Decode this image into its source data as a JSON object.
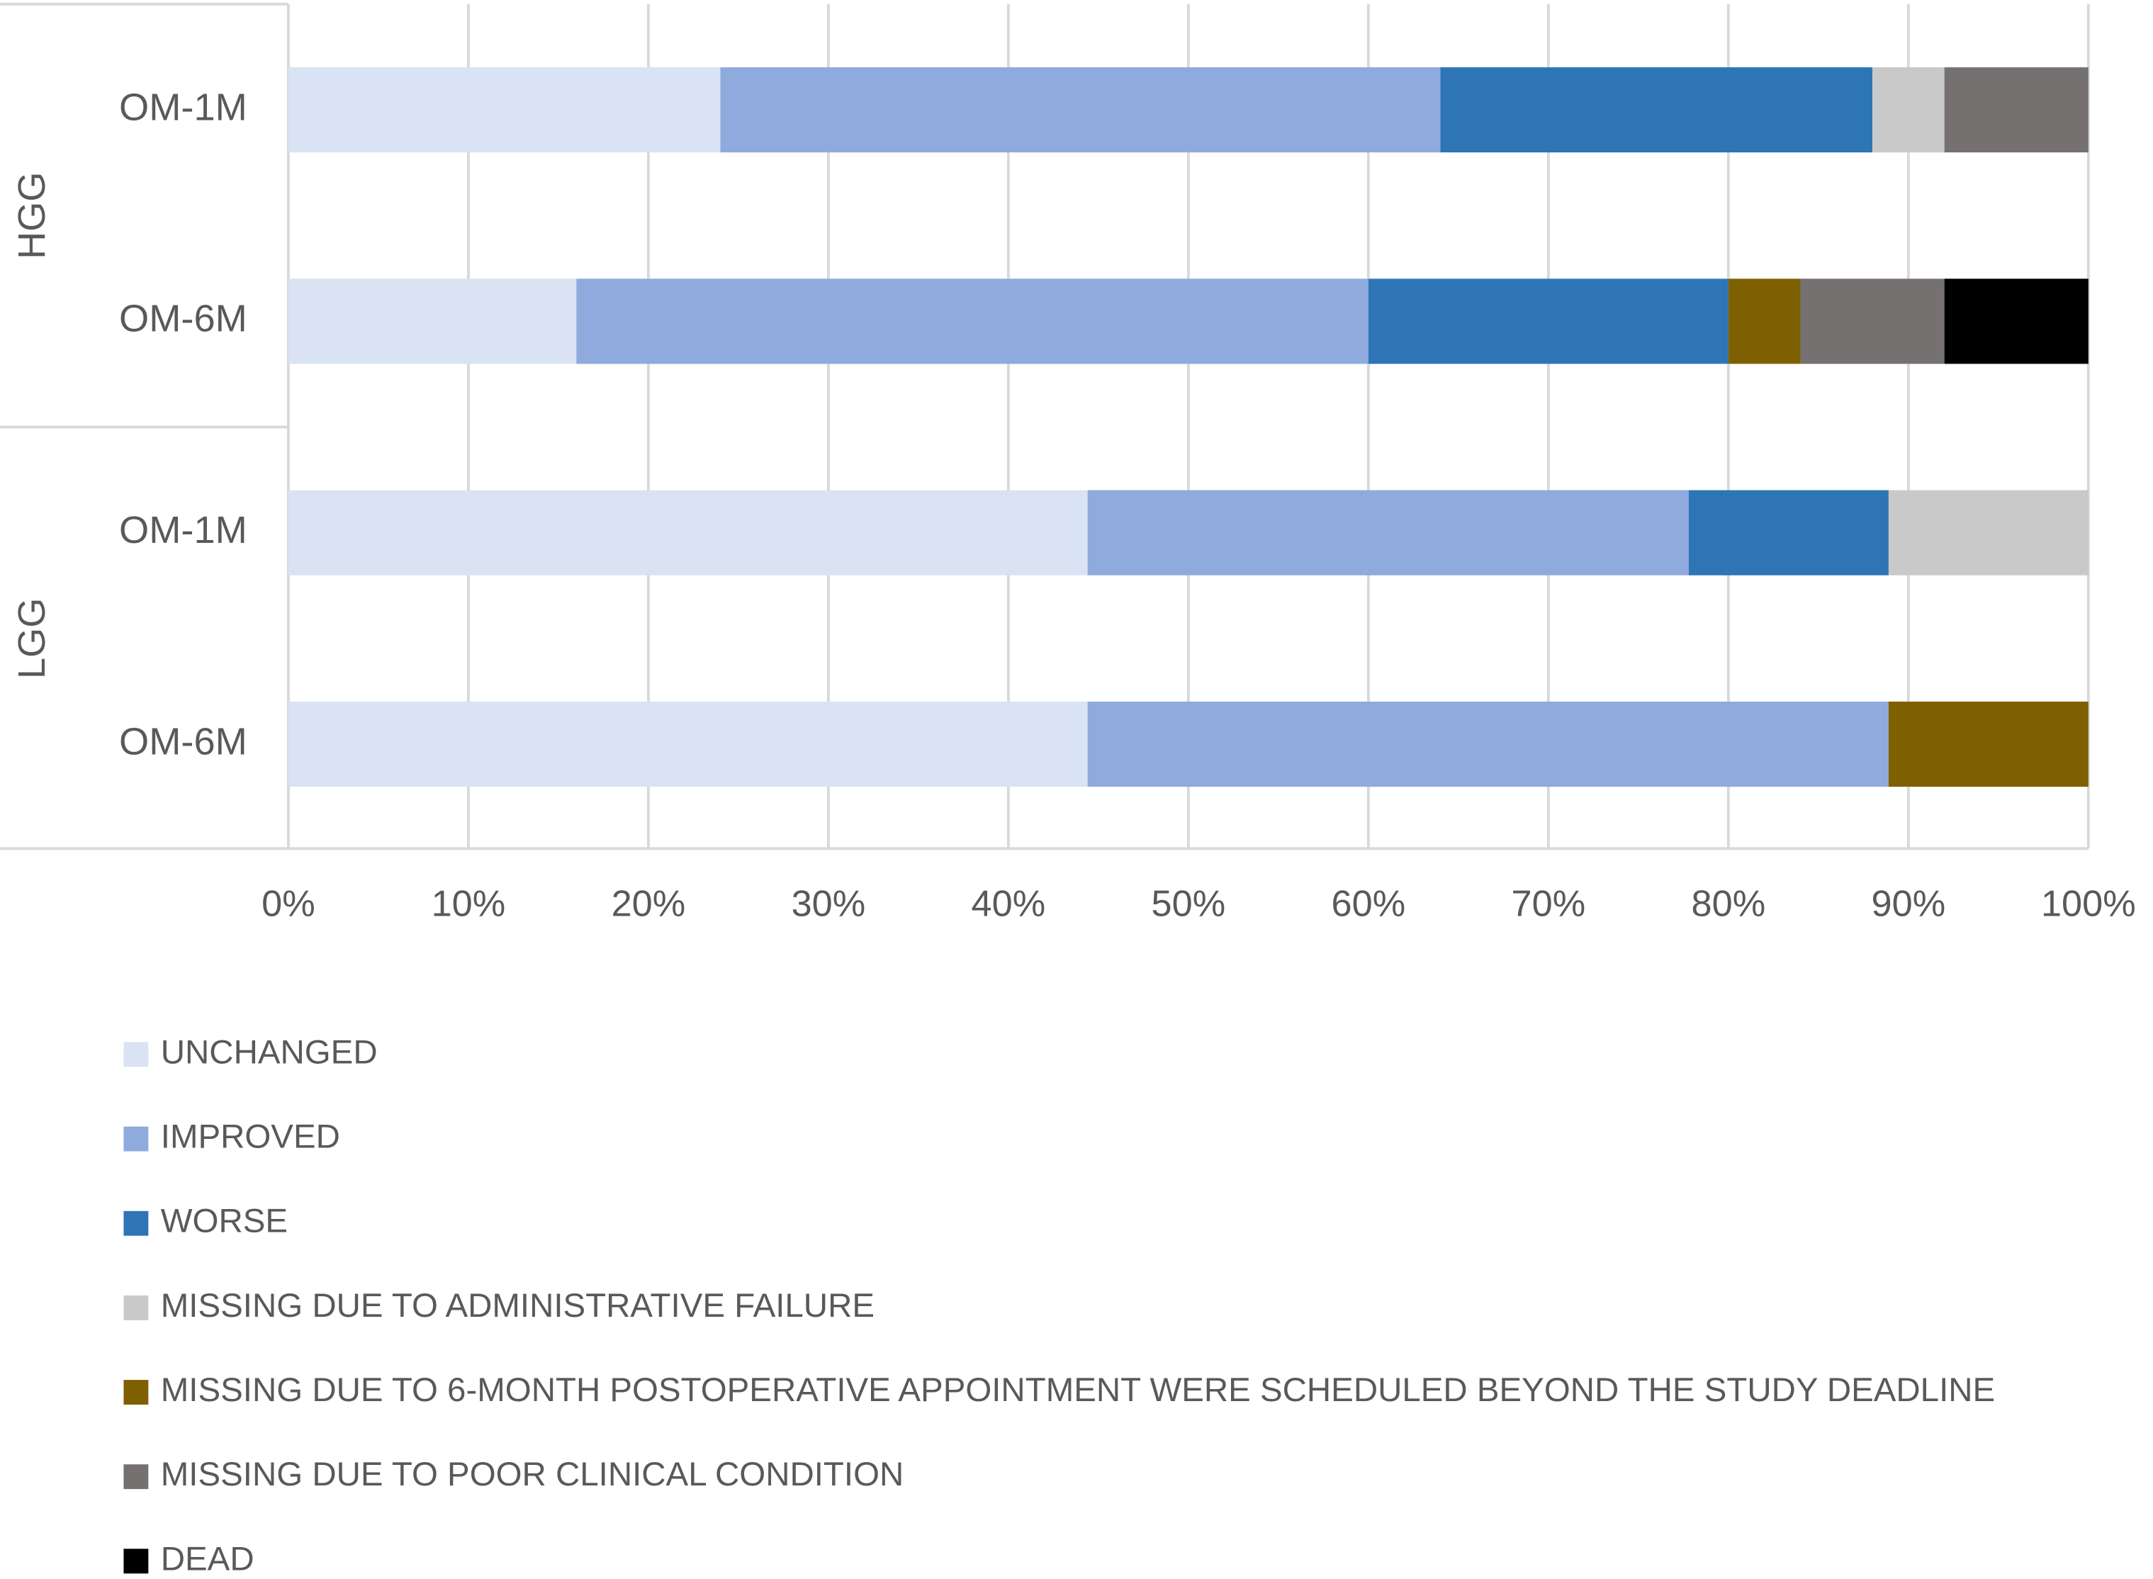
{
  "chart_data": {
    "type": "stacked-barh",
    "groups": [
      {
        "name": "HGG",
        "categories": [
          "OM-1M",
          "OM-6M"
        ]
      },
      {
        "name": "LGG",
        "categories": [
          "OM-1M",
          "OM-6M"
        ]
      }
    ],
    "series": [
      {
        "name": "UNCHANGED",
        "color": "#dae3f3",
        "values": [
          24,
          16,
          44.4,
          44.4
        ]
      },
      {
        "name": "IMPROVED",
        "color": "#8faadc",
        "values": [
          40,
          44,
          33.4,
          44.5
        ]
      },
      {
        "name": "WORSE",
        "color": "#2e75b6",
        "values": [
          24,
          20,
          11.1,
          null
        ]
      },
      {
        "name": "MISSING DUE TO ADMINISTRATIVE FAILURE",
        "color": "#c9c9c9",
        "values": [
          4,
          null,
          11.1,
          null
        ]
      },
      {
        "name": "MISSING DUE TO 6-MONTH POSTOPERATIVE APPOINTMENT WERE SCHEDULED BEYOND THE STUDY DEADLINE",
        "color": "#7f6000",
        "values": [
          null,
          4,
          null,
          11.1
        ]
      },
      {
        "name": "MISSING DUE TO POOR CLINICAL CONDITION",
        "color": "#767171",
        "values": [
          8,
          8,
          null,
          null
        ]
      },
      {
        "name": "DEAD",
        "color": "#000000",
        "values": [
          null,
          8,
          null,
          null
        ]
      }
    ],
    "xlim": [
      0,
      100
    ],
    "xticks": [
      {
        "value": 0,
        "label": "0%"
      },
      {
        "value": 10,
        "label": "10%"
      },
      {
        "value": 20,
        "label": "20%"
      },
      {
        "value": 30,
        "label": "30%"
      },
      {
        "value": 40,
        "label": "40%"
      },
      {
        "value": 50,
        "label": "50%"
      },
      {
        "value": 60,
        "label": "60%"
      },
      {
        "value": 70,
        "label": "70%"
      },
      {
        "value": 80,
        "label": "80%"
      },
      {
        "value": 90,
        "label": "90%"
      },
      {
        "value": 100,
        "label": "100%"
      }
    ],
    "grid": true,
    "legend": "bottom"
  }
}
